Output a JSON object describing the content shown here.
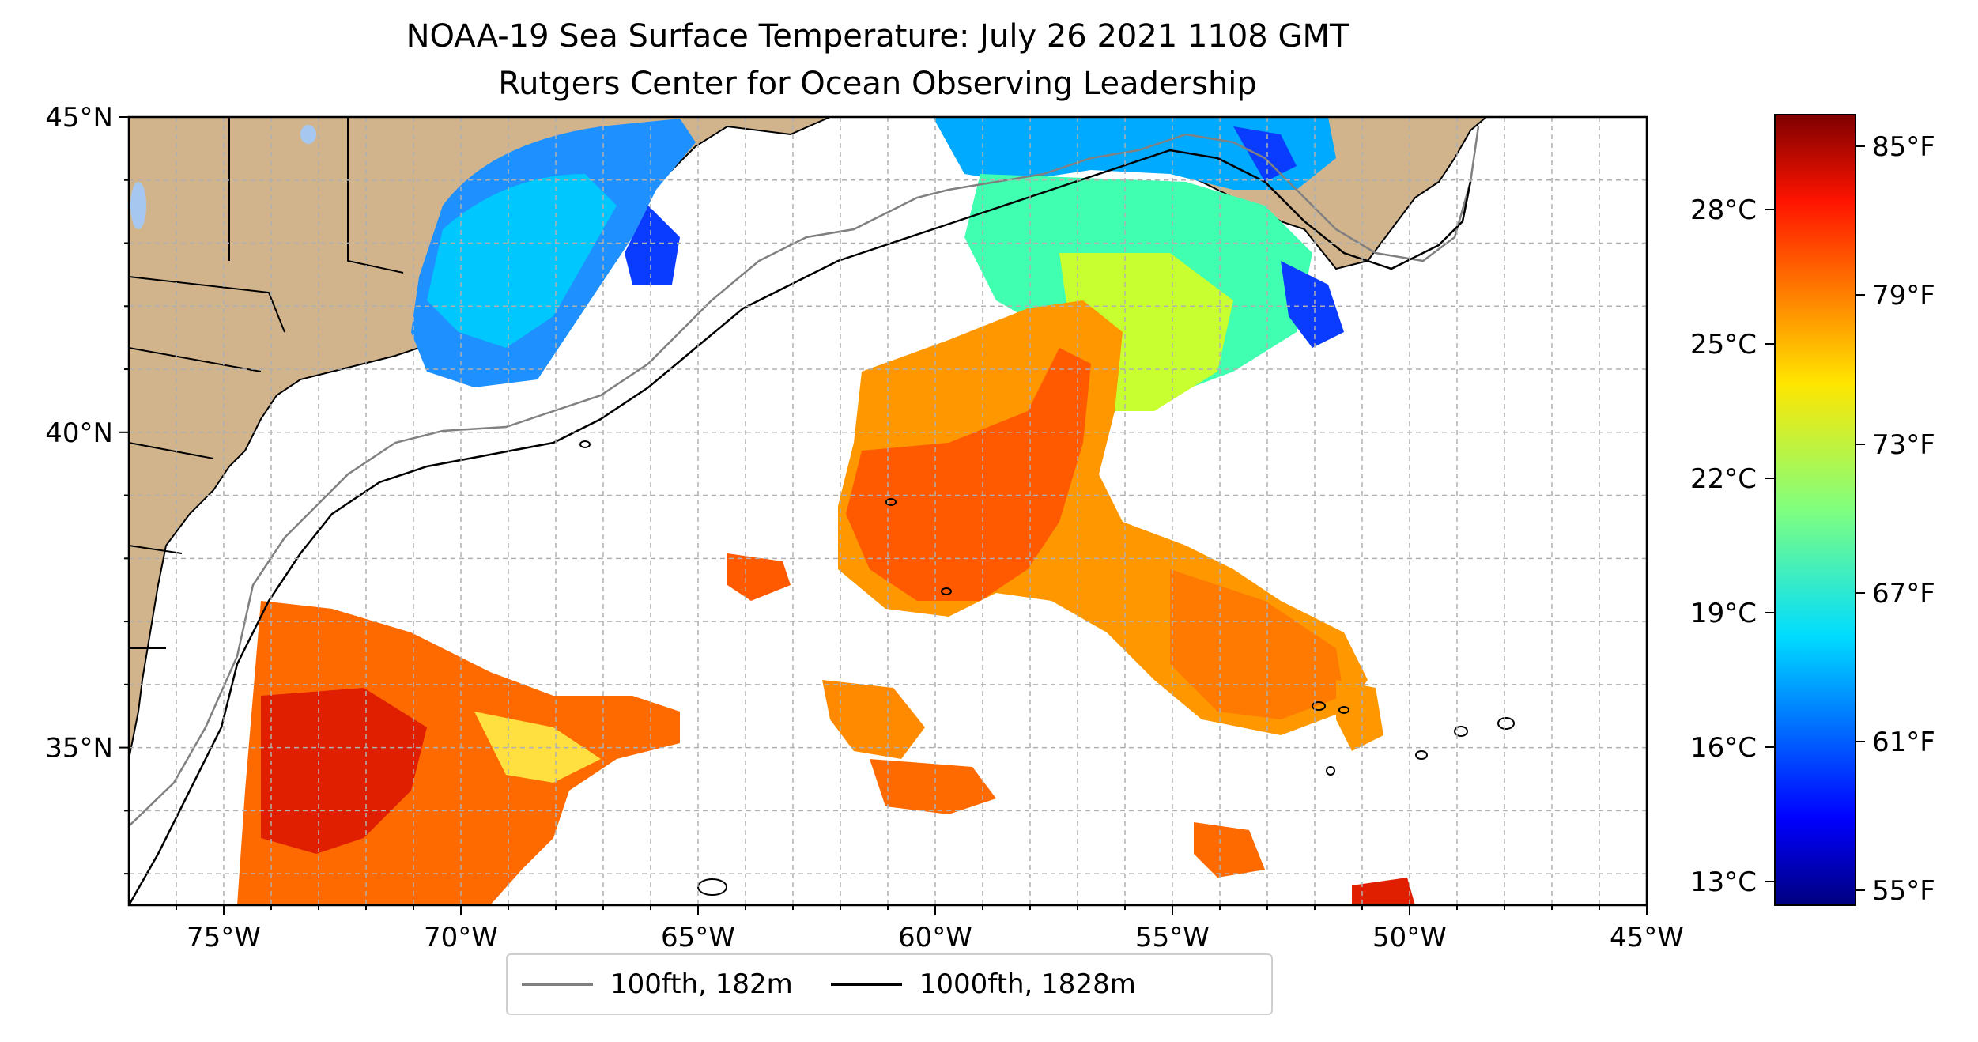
{
  "title": {
    "line1": "NOAA-19 Sea Surface Temperature: July 26 2021 1108 GMT",
    "line2": "Rutgers Center for Ocean Observing Leadership"
  },
  "map": {
    "lon_range": [
      -77,
      -45
    ],
    "lat_range": [
      32.5,
      45
    ],
    "lon_ticks": [
      "75°W",
      "70°W",
      "65°W",
      "60°W",
      "55°W",
      "50°W",
      "45°W"
    ],
    "lat_ticks": [
      "45°N",
      "40°N",
      "35°N"
    ],
    "land_color": "#d2b48c",
    "lake_color": "#a6c8f0",
    "grid": "dashed"
  },
  "colorbar": {
    "colormap": "jet",
    "celsius_ticks": [
      "28°C",
      "25°C",
      "22°C",
      "19°C",
      "16°C",
      "13°C"
    ],
    "fahrenheit_ticks": [
      "85°F",
      "79°F",
      "73°F",
      "67°F",
      "61°F",
      "55°F"
    ]
  },
  "legend": {
    "items": [
      {
        "label": "100fth, 182m",
        "color": "#808080"
      },
      {
        "label": "1000fth, 1828m",
        "color": "#000000"
      }
    ]
  }
}
